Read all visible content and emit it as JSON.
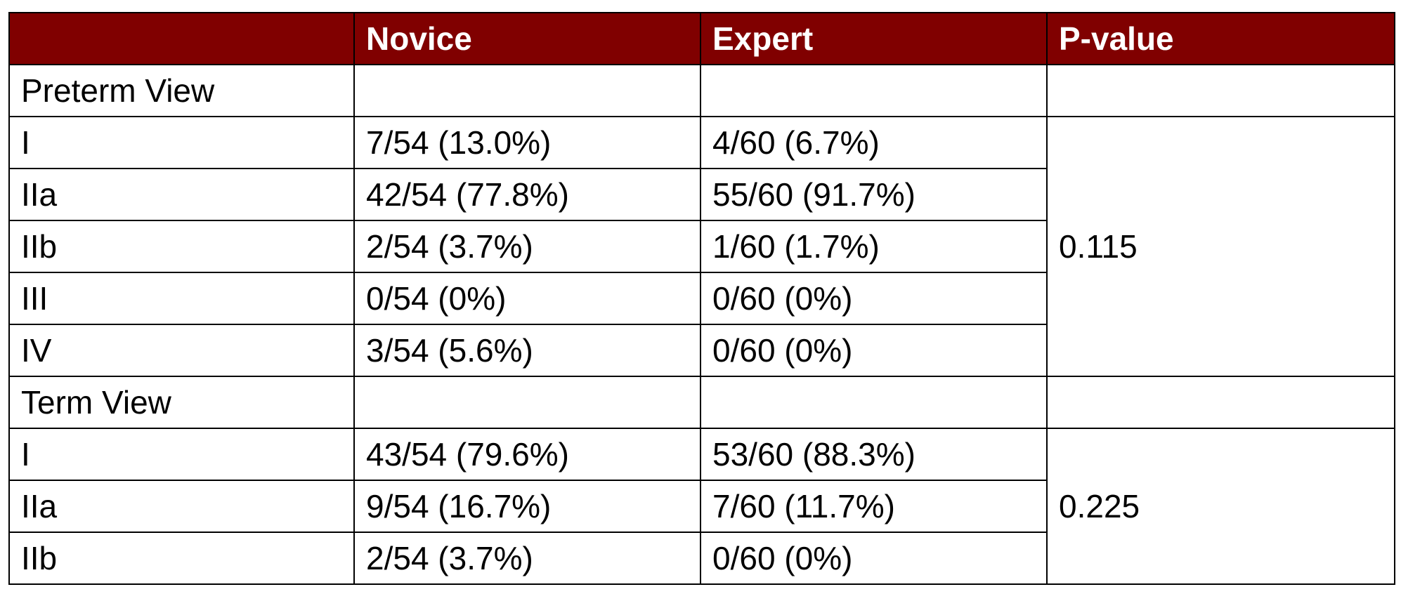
{
  "table": {
    "headers": [
      "",
      "Novice",
      "Expert",
      "P-value"
    ],
    "sections": [
      {
        "label": "Preterm View",
        "p_value": "0.115",
        "rows": [
          {
            "label": "I",
            "novice": "7/54 (13.0%)",
            "expert": "4/60 (6.7%)"
          },
          {
            "label": "IIa",
            "novice": "42/54 (77.8%)",
            "expert": "55/60 (91.7%)"
          },
          {
            "label": "IIb",
            "novice": "2/54 (3.7%)",
            "expert": "1/60 (1.7%)"
          },
          {
            "label": "III",
            "novice": "0/54 (0%)",
            "expert": "0/60 (0%)"
          },
          {
            "label": "IV",
            "novice": "3/54 (5.6%)",
            "expert": "0/60 (0%)"
          }
        ]
      },
      {
        "label": "Term View",
        "p_value": "0.225",
        "rows": [
          {
            "label": "I",
            "novice": "43/54 (79.6%)",
            "expert": "53/60 (88.3%)"
          },
          {
            "label": "IIa",
            "novice": "9/54 (16.7%)",
            "expert": "7/60 (11.7%)"
          },
          {
            "label": "IIb",
            "novice": "2/54 (3.7%)",
            "expert": "0/60 (0%)"
          }
        ]
      }
    ]
  },
  "colors": {
    "header_background": "#800000",
    "header_text": "#ffffff",
    "border": "#000000"
  }
}
